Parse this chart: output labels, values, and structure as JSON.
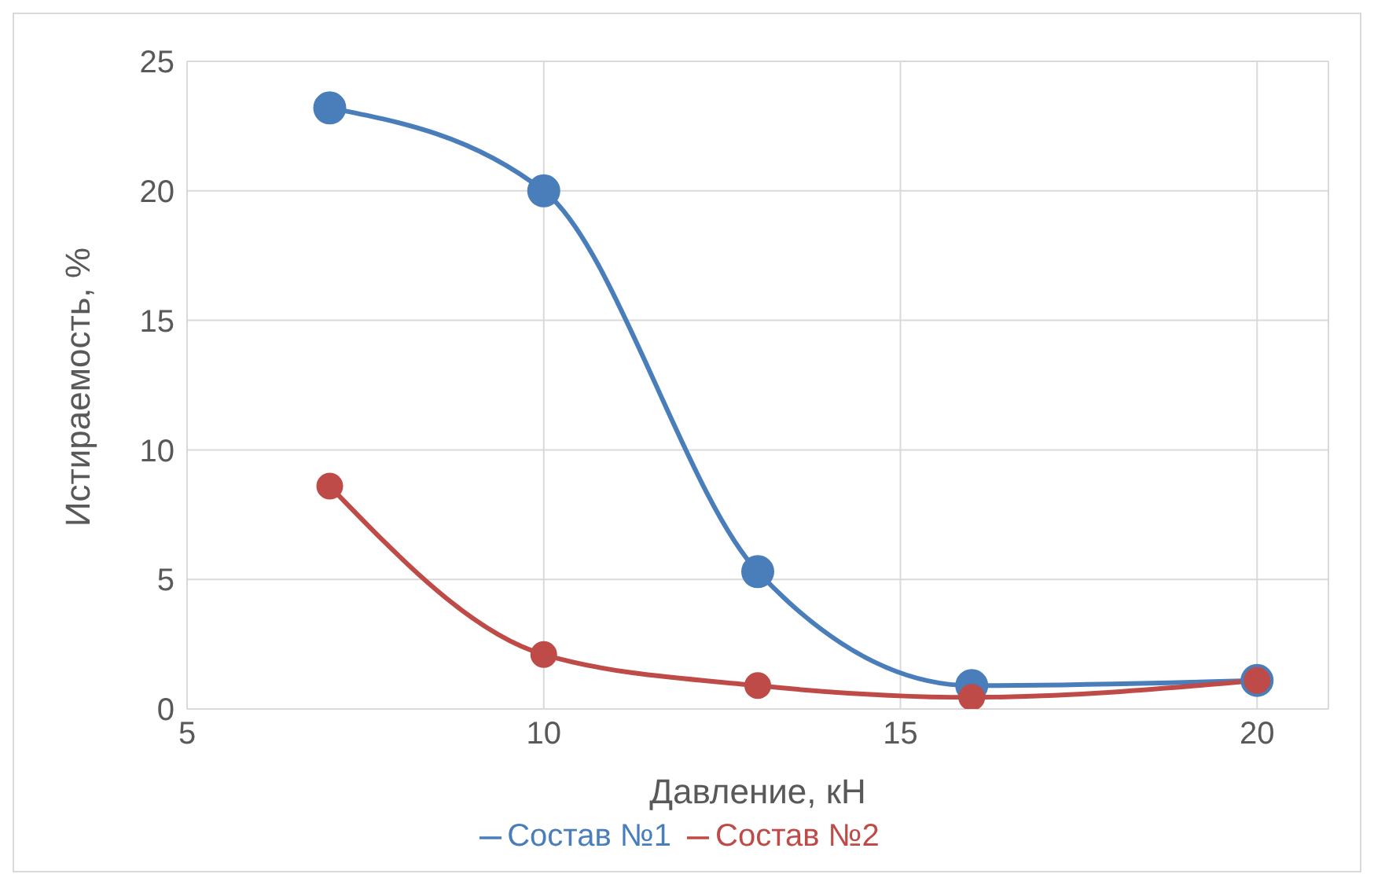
{
  "chart_data": {
    "type": "line",
    "xlabel": "Давление, кН",
    "ylabel": "Истираемость, %",
    "x": [
      7,
      10,
      13,
      16,
      20
    ],
    "series": [
      {
        "name": "Состав №1",
        "color": "#4a7ebb",
        "values": [
          23.2,
          20,
          5.3,
          0.9,
          1.1
        ]
      },
      {
        "name": "Состав №2",
        "color": "#be4b48",
        "values": [
          8.6,
          2.1,
          0.9,
          0.45,
          1.1
        ]
      }
    ],
    "xlim": [
      5,
      21
    ],
    "xticks": [
      5,
      10,
      15,
      20
    ],
    "ylim": [
      0,
      25
    ],
    "yticks": [
      0,
      5,
      10,
      15,
      20,
      25
    ],
    "grid": true,
    "legend": "bottom",
    "marker": "circle",
    "line_style": "solid"
  }
}
